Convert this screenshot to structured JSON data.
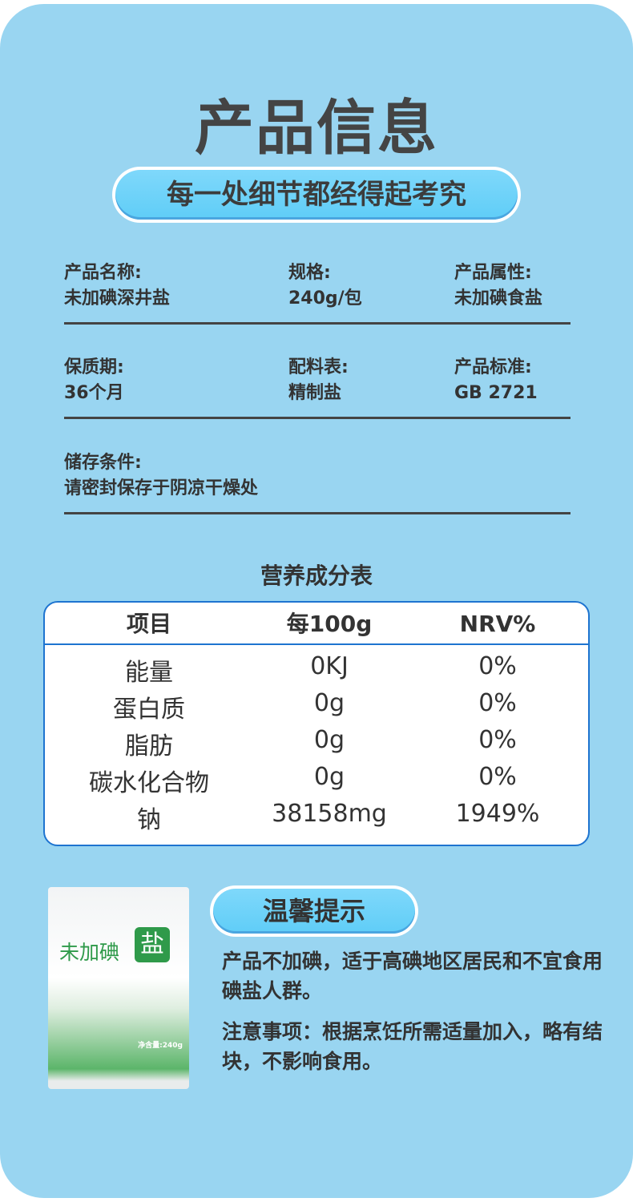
{
  "header": {
    "title": "产品信息",
    "subtitle": "每一处细节都经得起考究"
  },
  "info": [
    {
      "label": "产品名称:",
      "value": "未加碘深井盐"
    },
    {
      "label": "规格:",
      "value": "240g/包"
    },
    {
      "label": "产品属性:",
      "value": "未加碘食盐"
    },
    {
      "label": "保质期:",
      "value": "36个月"
    },
    {
      "label": "配料表:",
      "value": "精制盐"
    },
    {
      "label": "产品标准:",
      "value": "GB 2721"
    },
    {
      "label": "储存条件:",
      "value": "请密封保存于阴凉干燥处"
    }
  ],
  "nutrition": {
    "title": "营养成分表",
    "headers": [
      "项目",
      "每100g",
      "NRV%"
    ],
    "rows": [
      [
        "能量",
        "0KJ",
        "0%"
      ],
      [
        "蛋白质",
        "0g",
        "0%"
      ],
      [
        "脂肪",
        "0g",
        "0%"
      ],
      [
        "碳水化合物",
        "0g",
        "0%"
      ],
      [
        "钠",
        "38158mg",
        "1949%"
      ]
    ]
  },
  "tips": {
    "title": "温馨提示",
    "p1": "产品不加碘，适于高碘地区居民和不宜食用碘盐人群。",
    "p2": "注意事项：根据烹饪所需适量加入，略有结块，不影响食用。"
  },
  "package": {
    "name": "未加碘",
    "big": "盐",
    "net": "净含量:240g"
  },
  "colors": {
    "background": "#99d5f1",
    "accent": "#1e74d0",
    "pill": "#5fcdf7"
  }
}
